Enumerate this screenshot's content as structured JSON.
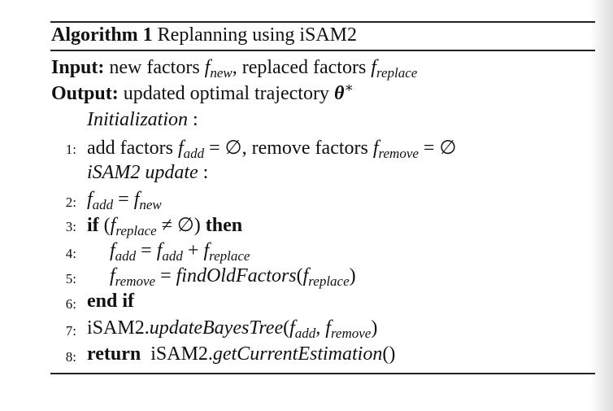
{
  "caption": {
    "label": "Algorithm 1",
    "title": "Replanning using iSAM2"
  },
  "io": {
    "input_label": "Input:",
    "input_text1": "new factors",
    "input_f": "f",
    "input_sub1": "new",
    "input_text2": ", replaced factors",
    "input_sub2": "replace",
    "output_label": "Output:",
    "output_text": "updated optimal trajectory",
    "output_theta": "θ",
    "output_star": "∗"
  },
  "sections": {
    "init": "Initialization",
    "update": "iSAM2 update",
    "colon": ":"
  },
  "lines": {
    "n1": "1:",
    "n2": "2:",
    "n3": "3:",
    "n4": "4:",
    "n5": "5:",
    "n6": "6:",
    "n7": "7:",
    "n8": "8:",
    "l1_text1": "add factors",
    "l1_text2": ", remove factors",
    "sub_add": "add",
    "sub_new": "new",
    "sub_replace": "replace",
    "sub_remove": "remove",
    "f": "f",
    "eq": "=",
    "neq": "≠",
    "plus": "+",
    "empty": "∅",
    "comma": ",",
    "if": "if",
    "then": "then",
    "end_if": "end if",
    "return": "return",
    "find_func": "findOldFactors",
    "isam_obj": "iSAM2.",
    "update_func": "updateBayesTree",
    "estimate_func": "getCurrentEstimation",
    "lparen": "(",
    "rparen": ")",
    "unit": "()"
  }
}
